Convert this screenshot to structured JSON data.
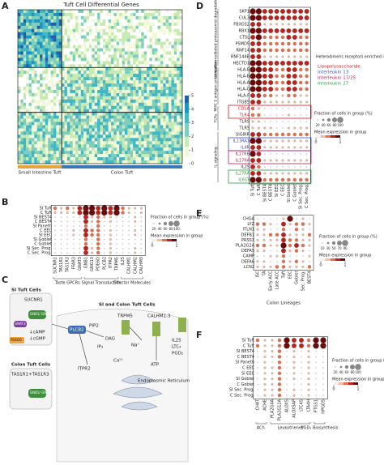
{
  "panel_labels": [
    "A",
    "B",
    "C",
    "D",
    "E",
    "F"
  ],
  "panel_a": {
    "title": "Tuft Cell Differential Genes",
    "groups": [
      "Small Intestine Tuft",
      "Colon Tuft"
    ],
    "colorbar_ticks": [
      0,
      1,
      2,
      3,
      4,
      5
    ]
  },
  "panel_b": {
    "rows": [
      "SI Tuft",
      "C Tuft",
      "SI BEST4",
      "C BEST4",
      "SI Paneth",
      "C EEC",
      "SI EEC",
      "SI Goblet",
      "C Goblet",
      "SI Sec. Prog.",
      "C Sec. Prog."
    ],
    "cols": [
      "SUCNR1",
      "TAS1R1",
      "TAS1R3",
      "FFAR3",
      "GNAT3",
      "GNB1",
      "GNG13",
      "PDE6D",
      "PLCB2",
      "ITPR2",
      "TRPM5",
      "IL25",
      "CALHM1",
      "CALHM2",
      "CALHM3"
    ],
    "groups": [
      "Taste GPCRs",
      "Signal Transduction",
      "Effector Molecules"
    ],
    "values": [
      [
        2,
        1,
        2,
        1,
        3,
        4,
        4,
        3,
        4,
        3,
        4,
        2,
        1,
        1,
        1
      ],
      [
        1,
        1,
        1,
        1,
        3,
        4,
        4,
        3,
        4,
        3,
        4,
        2,
        1,
        0,
        1
      ],
      [
        0,
        0,
        0,
        0,
        0,
        3,
        1,
        2,
        1,
        1,
        0,
        0,
        0,
        1,
        0
      ],
      [
        0,
        0,
        0,
        0,
        0,
        3,
        1,
        2,
        0,
        1,
        0,
        0,
        0,
        1,
        0
      ],
      [
        0,
        0,
        0,
        0,
        0,
        2,
        0,
        2,
        0,
        0,
        0,
        0,
        0,
        0,
        0
      ],
      [
        0,
        0,
        0,
        1,
        0,
        3,
        2,
        2,
        0,
        1,
        0,
        0,
        0,
        1,
        0
      ],
      [
        0,
        0,
        0,
        1,
        0,
        3,
        2,
        2,
        0,
        1,
        0,
        0,
        0,
        1,
        0
      ],
      [
        0,
        0,
        0,
        0,
        0,
        2,
        0,
        2,
        0,
        1,
        0,
        0,
        0,
        0,
        0
      ],
      [
        0,
        0,
        0,
        0,
        0,
        2,
        0,
        2,
        0,
        1,
        0,
        0,
        0,
        0,
        0
      ],
      [
        0,
        0,
        0,
        0,
        0,
        3,
        1,
        2,
        0,
        1,
        0,
        0,
        0,
        1,
        0
      ],
      [
        0,
        0,
        0,
        0,
        0,
        3,
        1,
        2,
        0,
        1,
        0,
        0,
        0,
        1,
        0
      ]
    ],
    "size_title": "Fraction of cells in group (%)",
    "size_ticks": [
      20,
      40,
      60,
      80,
      100
    ],
    "color_title": "Mean expression in group",
    "color_ticks": [
      0,
      1
    ]
  },
  "panel_c": {
    "si_title": "SI Tuft Cells",
    "sucnr1": "SUCNR1",
    "gnb1_a": "GNB1/ GNG13",
    "gnat3": "GNAT3",
    "camp": "↓cAMP",
    "cgmp": "↓cGMP",
    "pde6d": "PDE6D",
    "colon_title": "Colon Tuft Cells",
    "tas": "TAS1R1+TAS1R3",
    "gnb1_b": "GNB1/ GNG13",
    "shared_title": "SI and Colon Tuft Cells",
    "plcb2": "PLCB2",
    "pip2": "PIP2",
    "dag": "DAG",
    "ip3": "IP₃",
    "itpr2": "ITPR2",
    "trpm5": "TRPM5",
    "na": "Na⁺",
    "calhm": "CALHM1-3",
    "atp": "ATP",
    "effectors": [
      "IL25",
      "LTC₄",
      "PGD₂"
    ],
    "ca": "Ca²⁺",
    "er": "Endoplasmic Reticulum"
  },
  "panel_d": {
    "rows": [
      "SKP1",
      "CUL3",
      "FBXO32",
      "RBX1",
      "CTSL",
      "PSMD9",
      "RNF14",
      "RNF144B",
      "HECTD1",
      "HLA-E",
      "HLA-B",
      "HLA-A",
      "HLA-C",
      "HLA-F",
      "ITGB5",
      "CD1A",
      "TLR4",
      "TLR9",
      "TLR5",
      "SIGIRR",
      "IL13RA1",
      "IL4R",
      "IL17RB",
      "IL17RA",
      "IL25",
      "IL27RA",
      "IL6ST"
    ],
    "row_colors": [
      "#222",
      "#222",
      "#222",
      "#222",
      "#222",
      "#222",
      "#222",
      "#222",
      "#222",
      "#222",
      "#222",
      "#222",
      "#222",
      "#222",
      "#222",
      "#d7191c",
      "#d7191c",
      "#222",
      "#222",
      "#222",
      "#3b4cc0",
      "#3b4cc0",
      "#c2185b",
      "#c2185b",
      "#222",
      "#2e9e44",
      "#2e9e44"
    ],
    "cols": [
      "SI Tuft",
      "C Tuft",
      "SI BEST4",
      "C BEST4",
      "SI EEC",
      "C EEC",
      "SI Goblet",
      "C Goblet",
      "SI Sec. Prog.",
      "C Sec. Prog."
    ],
    "groups": [
      "Ubiquitin-mediated proteasomal degradation",
      "MHC 1 antigen presentation",
      "TLRs",
      "IL signaling"
    ],
    "values": [
      [
        4,
        4,
        3,
        3,
        3,
        3,
        3,
        3,
        3,
        3
      ],
      [
        4,
        4,
        3,
        3,
        3,
        3,
        3,
        3,
        3,
        3
      ],
      [
        3,
        3,
        1,
        1,
        1,
        1,
        1,
        1,
        1,
        1
      ],
      [
        4,
        4,
        3,
        3,
        3,
        3,
        3,
        3,
        3,
        3
      ],
      [
        3,
        4,
        2,
        2,
        2,
        2,
        3,
        3,
        2,
        2
      ],
      [
        3,
        3,
        2,
        2,
        2,
        2,
        2,
        2,
        2,
        2
      ],
      [
        3,
        3,
        2,
        2,
        2,
        2,
        2,
        2,
        2,
        2
      ],
      [
        3,
        3,
        1,
        1,
        1,
        1,
        1,
        1,
        1,
        1
      ],
      [
        4,
        4,
        3,
        3,
        3,
        3,
        3,
        3,
        3,
        3
      ],
      [
        4,
        4,
        3,
        3,
        2,
        2,
        3,
        3,
        2,
        2
      ],
      [
        4,
        4,
        3,
        3,
        2,
        2,
        3,
        3,
        2,
        2
      ],
      [
        4,
        4,
        3,
        3,
        2,
        2,
        3,
        3,
        2,
        2
      ],
      [
        4,
        4,
        3,
        3,
        2,
        2,
        3,
        3,
        2,
        2
      ],
      [
        3,
        3,
        2,
        2,
        1,
        1,
        2,
        2,
        1,
        1
      ],
      [
        3,
        3,
        1,
        1,
        1,
        1,
        1,
        1,
        1,
        1
      ],
      [
        2,
        1,
        0,
        0,
        0,
        0,
        0,
        0,
        0,
        0
      ],
      [
        2,
        2,
        0,
        0,
        0,
        0,
        1,
        0,
        0,
        0
      ],
      [
        1,
        1,
        0,
        0,
        0,
        0,
        0,
        0,
        0,
        0
      ],
      [
        1,
        1,
        1,
        1,
        0,
        0,
        1,
        1,
        1,
        1
      ],
      [
        3,
        3,
        2,
        2,
        2,
        2,
        2,
        2,
        2,
        2
      ],
      [
        4,
        4,
        1,
        1,
        1,
        1,
        1,
        1,
        1,
        1
      ],
      [
        3,
        3,
        1,
        1,
        1,
        1,
        1,
        1,
        1,
        1
      ],
      [
        4,
        3,
        0,
        0,
        0,
        0,
        0,
        0,
        0,
        0
      ],
      [
        3,
        3,
        1,
        1,
        1,
        1,
        1,
        1,
        1,
        1
      ],
      [
        3,
        2,
        0,
        0,
        0,
        0,
        0,
        0,
        0,
        0
      ],
      [
        3,
        3,
        1,
        1,
        1,
        1,
        1,
        1,
        1,
        1
      ],
      [
        4,
        4,
        2,
        2,
        2,
        2,
        2,
        2,
        2,
        2
      ]
    ],
    "legend_title": "Heterodimeric receptors enriched in tuft cells",
    "legend": [
      {
        "name": "Lipopolysaccharide",
        "color": "#d7191c"
      },
      {
        "name": "Interleukin 13",
        "color": "#3b4cc0"
      },
      {
        "name": "Interleukin 17/25",
        "color": "#c2185b"
      },
      {
        "name": "Interleukin 27",
        "color": "#2e9e44"
      }
    ],
    "size_title": "Fraction of cells in group (%)",
    "size_ticks": [
      20,
      40,
      60,
      80,
      100
    ],
    "color_title": "Mean expression in group",
    "color_ticks": [
      0,
      1
    ]
  },
  "panel_e": {
    "rows": [
      "CHGA",
      "LYZ",
      "ITLN1",
      "DEFB1",
      "PRSS3",
      "PLA2G2A",
      "DEFA5",
      "CAMP",
      "DEFA6",
      "LCN2"
    ],
    "cols": [
      "ISC",
      "TA",
      "Early ACC",
      "Late ACC",
      "Tuft",
      "EEC",
      "Goblet",
      "Sec. Prog.",
      "BEST4"
    ],
    "xlabel": "Colon Lineages",
    "values": [
      [
        0,
        0,
        0,
        0,
        1,
        4,
        0,
        1,
        0
      ],
      [
        2,
        2,
        1,
        0,
        3,
        1,
        2,
        2,
        1
      ],
      [
        1,
        1,
        0,
        0,
        2,
        0,
        2,
        1,
        0
      ],
      [
        1,
        1,
        2,
        2,
        3,
        1,
        1,
        1,
        2
      ],
      [
        1,
        1,
        1,
        1,
        3,
        2,
        2,
        1,
        1
      ],
      [
        2,
        2,
        1,
        1,
        4,
        2,
        3,
        2,
        1
      ],
      [
        1,
        1,
        0,
        0,
        3,
        1,
        2,
        1,
        0
      ],
      [
        0,
        0,
        1,
        1,
        2,
        0,
        0,
        0,
        1
      ],
      [
        1,
        1,
        0,
        0,
        2,
        1,
        2,
        1,
        0
      ],
      [
        1,
        1,
        1,
        2,
        2,
        1,
        1,
        1,
        2
      ]
    ],
    "size_title": "Fraction of cells in group (%)",
    "size_ticks": [
      10,
      30,
      50,
      70,
      90
    ],
    "color_title": "Mean expression in group",
    "color_ticks": [
      0,
      1
    ]
  },
  "panel_f": {
    "rows": [
      "SI Tuft",
      "C Tuft",
      "SI BEST4",
      "C BEST4",
      "SI Paneth",
      "C EEC",
      "SI EEC",
      "SI Goblet",
      "C Goblet",
      "SI Sec. Prog.",
      "C Sec. Prog."
    ],
    "cols": [
      "CHAT",
      "ACHE",
      "PLA2G4A",
      "PLA2G12A",
      "ALOX5",
      "ALOX5AP",
      "LTC4S",
      "LTA4H",
      "PTGS1",
      "HPGDS"
    ],
    "groups": [
      "ACh.",
      "Leukotrienes",
      "PGD₂ Biosynthesis"
    ],
    "values": [
      [
        2,
        1,
        1,
        2,
        4,
        3,
        3,
        2,
        4,
        4
      ],
      [
        2,
        1,
        1,
        2,
        4,
        3,
        3,
        2,
        4,
        4
      ],
      [
        0,
        1,
        1,
        2,
        0,
        1,
        0,
        1,
        0,
        0
      ],
      [
        0,
        1,
        1,
        2,
        0,
        1,
        0,
        1,
        0,
        0
      ],
      [
        0,
        1,
        0,
        2,
        0,
        1,
        0,
        1,
        0,
        0
      ],
      [
        0,
        1,
        1,
        2,
        0,
        1,
        0,
        1,
        0,
        0
      ],
      [
        0,
        1,
        1,
        2,
        0,
        1,
        0,
        1,
        0,
        0
      ],
      [
        0,
        1,
        1,
        2,
        0,
        1,
        0,
        1,
        0,
        0
      ],
      [
        0,
        1,
        1,
        2,
        0,
        0,
        0,
        1,
        0,
        0
      ],
      [
        0,
        1,
        1,
        2,
        0,
        1,
        0,
        1,
        0,
        0
      ],
      [
        0,
        1,
        1,
        2,
        0,
        1,
        0,
        1,
        0,
        0
      ]
    ],
    "size_title": "Fraction of cells in group (%)",
    "size_ticks": [
      20,
      40,
      60,
      80,
      100
    ],
    "color_title": "Mean expression in group",
    "color_ticks": [
      0,
      1
    ]
  }
}
